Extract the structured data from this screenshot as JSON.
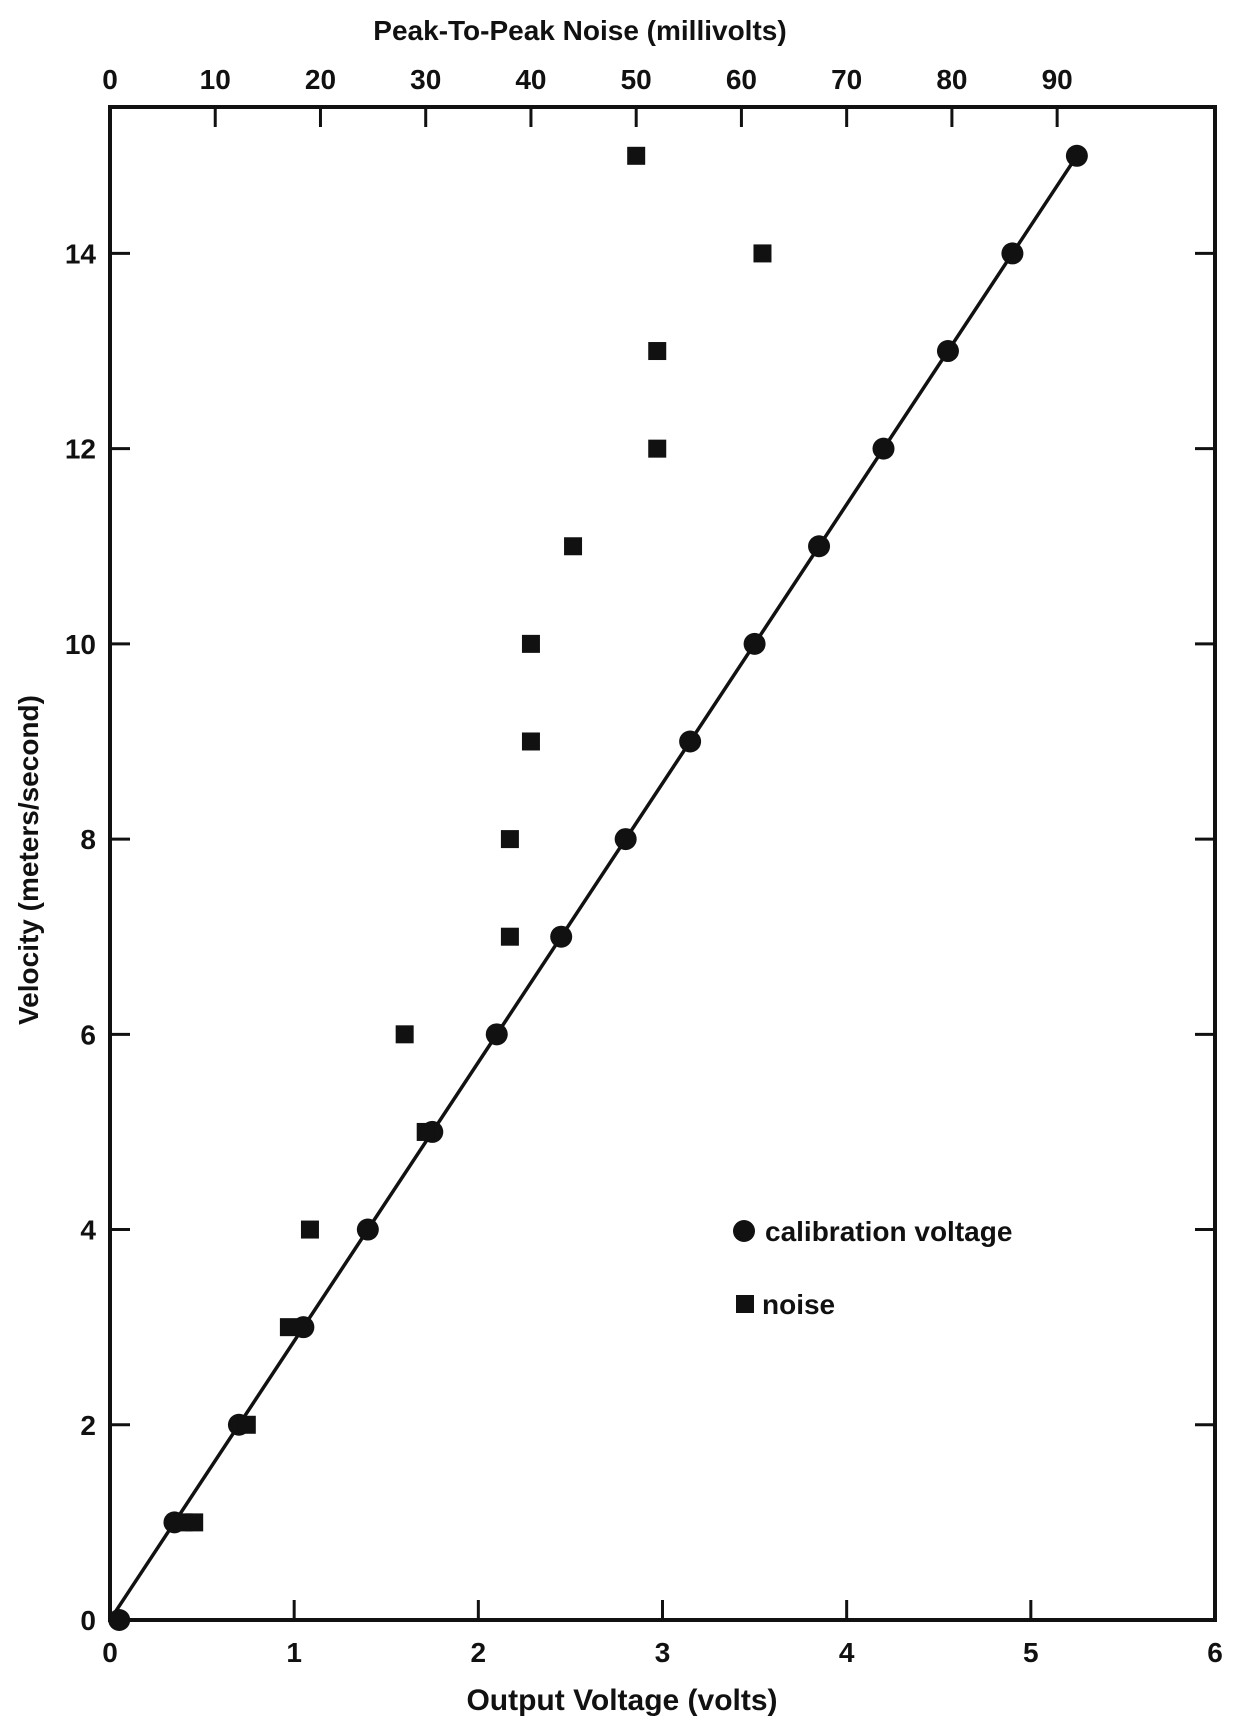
{
  "chart_data": {
    "type": "scatter",
    "top_axis": {
      "label": "Peak-To-Peak Noise (millivolts)",
      "ticks": [
        0,
        10,
        20,
        30,
        40,
        50,
        60,
        70,
        80,
        90
      ],
      "tick_labels": [
        "0",
        "10",
        "20",
        "30",
        "40",
        "50",
        "60",
        "70",
        "80",
        "90"
      ],
      "range": [
        0,
        105
      ]
    },
    "bottom_axis": {
      "label": "Output Voltage (volts)",
      "ticks": [
        0,
        1,
        2,
        3,
        4,
        5,
        6
      ],
      "tick_labels": [
        "0",
        "1",
        "2",
        "3",
        "4",
        "5",
        "6"
      ],
      "range": [
        0,
        6
      ]
    },
    "left_axis": {
      "label": "Velocity (meters/second)",
      "ticks": [
        0,
        2,
        4,
        6,
        8,
        10,
        12,
        14
      ],
      "tick_labels": [
        "0",
        "2",
        "4",
        "6",
        "8",
        "10",
        "12",
        "14"
      ],
      "range": [
        0,
        15.5
      ]
    },
    "grid": false,
    "legend": {
      "position": "lower-right",
      "entries": [
        {
          "label": "calibration voltage",
          "marker": "circle"
        },
        {
          "label": "noise",
          "marker": "square"
        }
      ]
    },
    "series": [
      {
        "name": "calibration voltage",
        "marker": "circle",
        "x_axis": "bottom",
        "x": [
          0.05,
          0.35,
          0.7,
          1.05,
          1.4,
          1.75,
          2.1,
          2.45,
          2.8,
          3.15,
          3.5,
          3.85,
          4.2,
          4.55,
          4.9,
          5.25
        ],
        "y": [
          0,
          1,
          2,
          3,
          4,
          5,
          6,
          7,
          8,
          9,
          10,
          11,
          12,
          13,
          14,
          15
        ]
      },
      {
        "name": "noise",
        "marker": "square",
        "x_axis": "top",
        "x": [
          7,
          8,
          13,
          17,
          19,
          28,
          30,
          38,
          38,
          40,
          40,
          44,
          52,
          52,
          62,
          50
        ],
        "y": [
          1,
          1,
          2,
          3,
          4,
          6,
          5,
          7,
          8,
          9,
          10,
          11,
          12,
          13,
          14,
          15
        ]
      }
    ],
    "fit_line": {
      "x_axis": "bottom",
      "x": [
        0,
        5.25
      ],
      "y": [
        0,
        15
      ]
    }
  }
}
